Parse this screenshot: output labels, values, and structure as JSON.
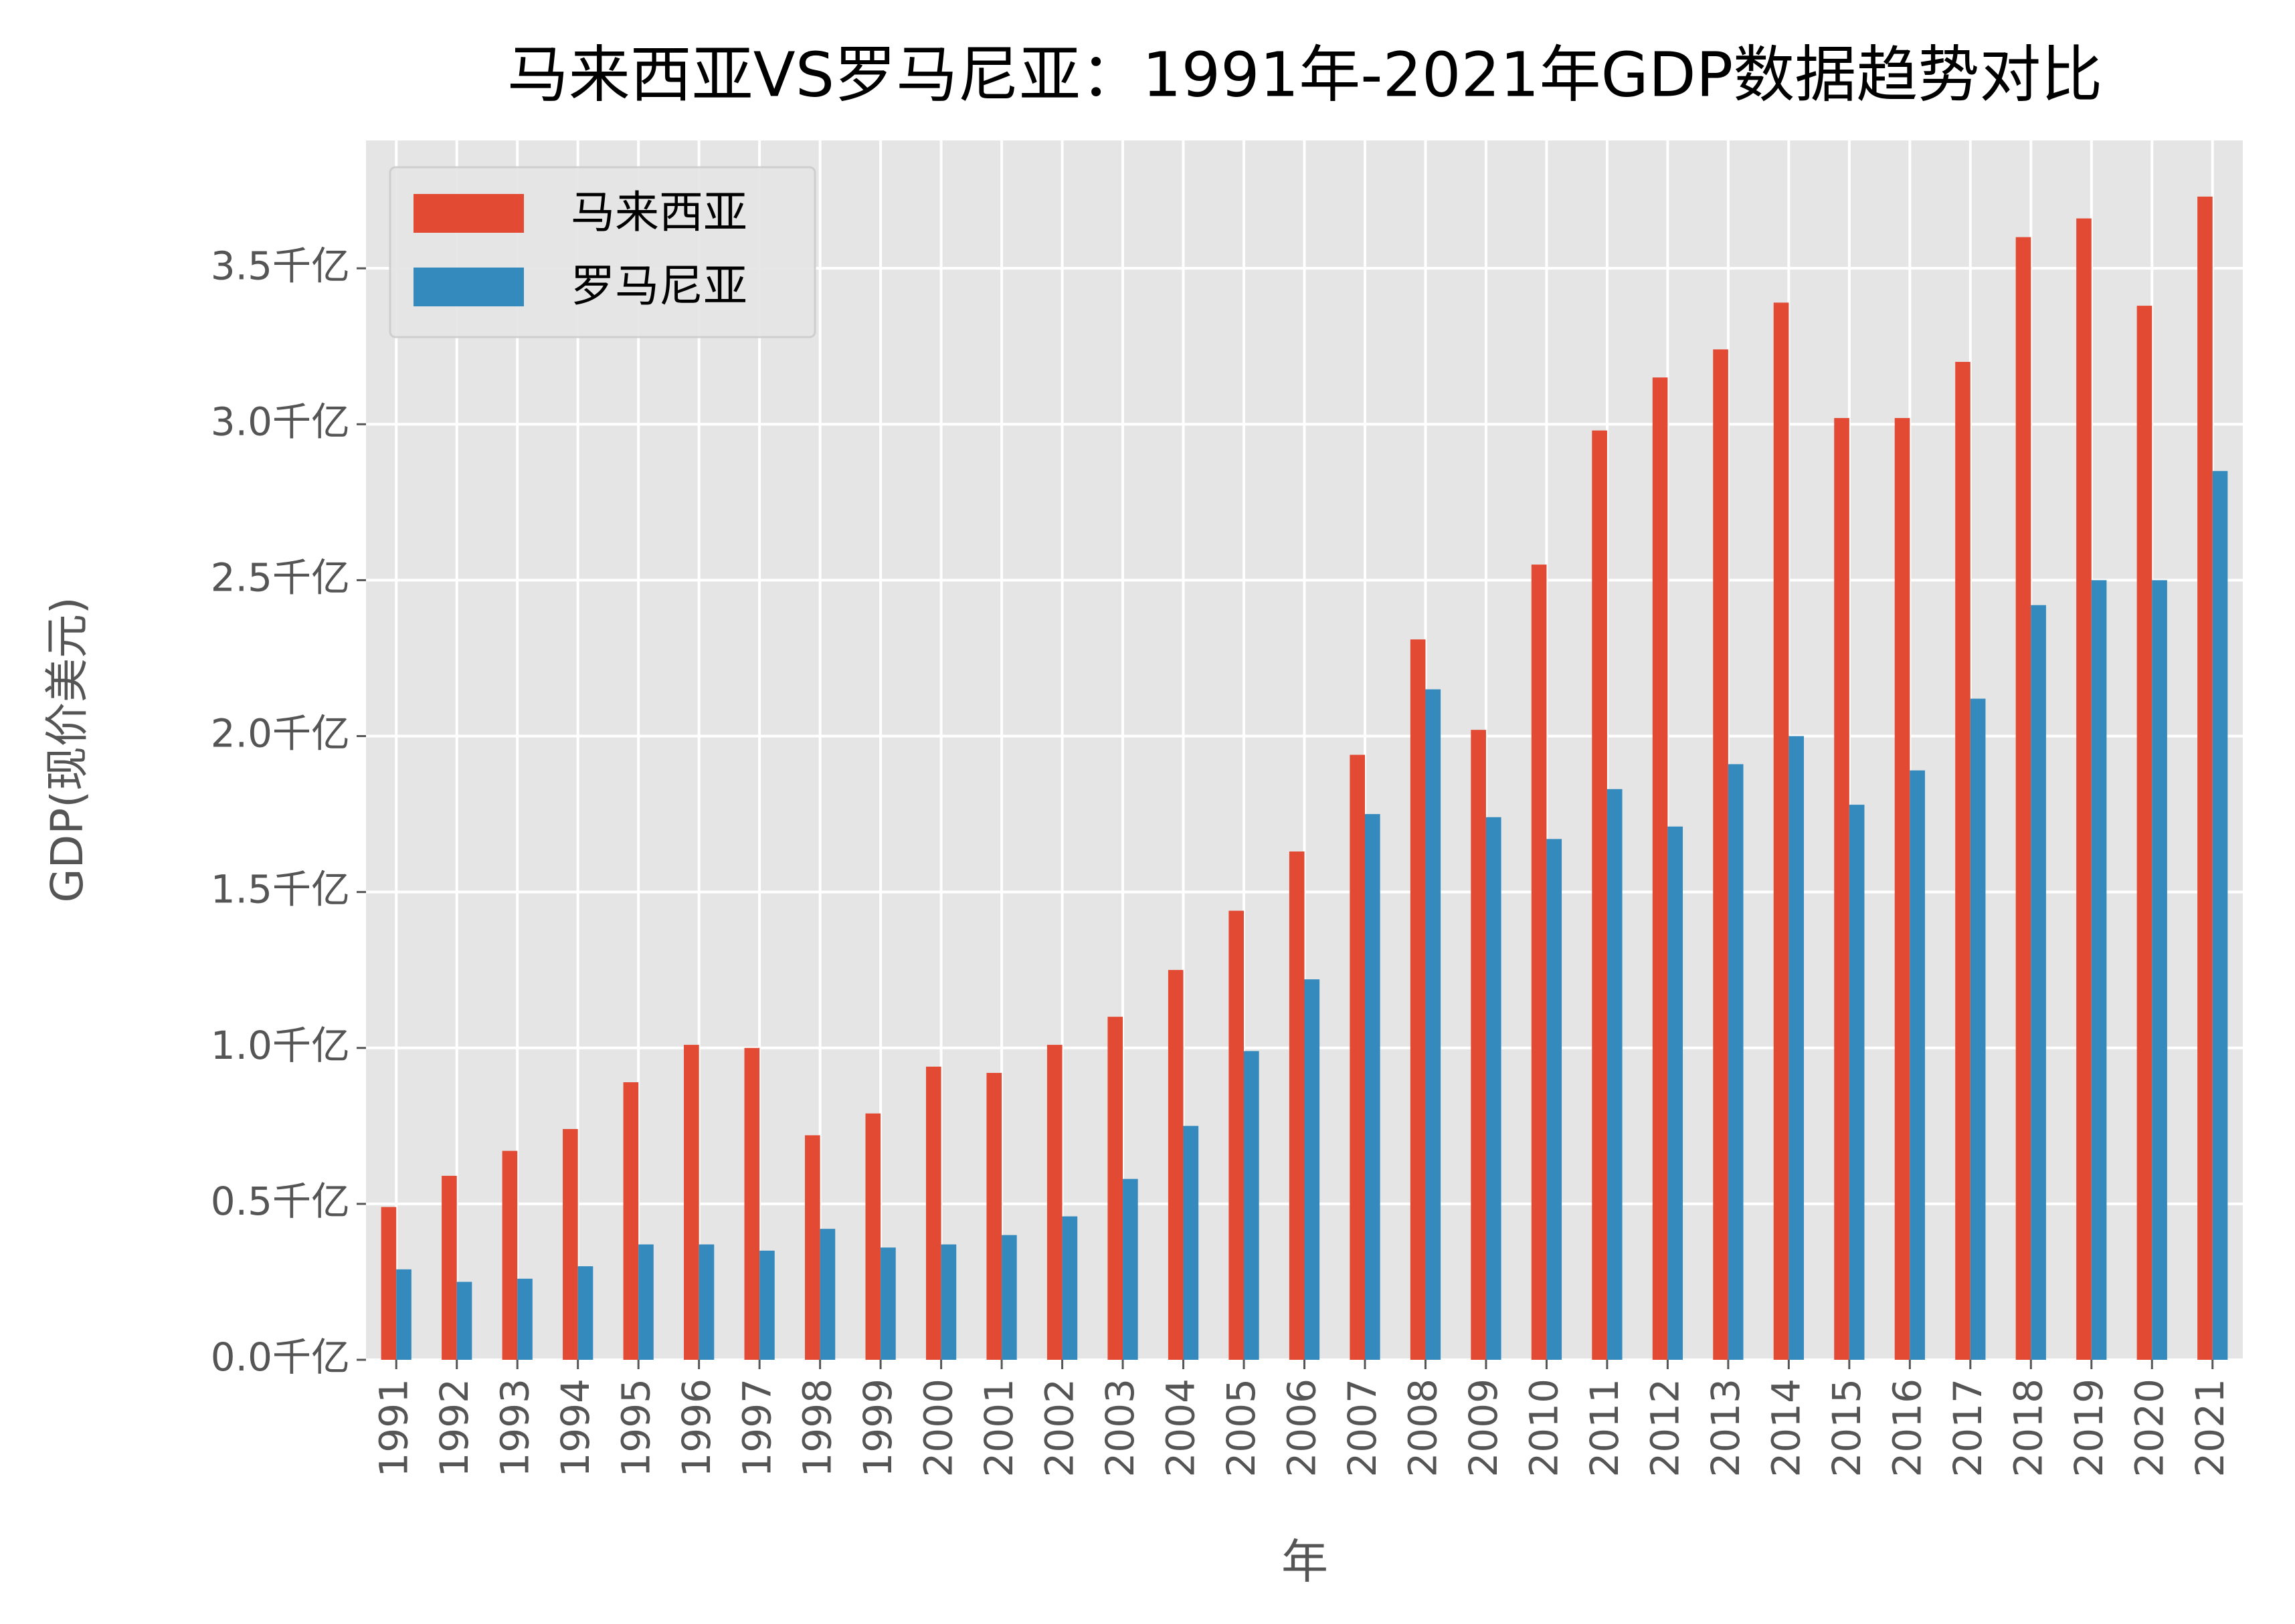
{
  "chart_data": {
    "type": "bar",
    "title": "马来西亚VS罗马尼亚：1991年-2021年GDP数据趋势对比",
    "x_label": "年",
    "y_label": "GDP(现价美元)",
    "categories": [
      "1991",
      "1992",
      "1993",
      "1994",
      "1995",
      "1996",
      "1997",
      "1998",
      "1999",
      "2000",
      "2001",
      "2002",
      "2003",
      "2004",
      "2005",
      "2006",
      "2007",
      "2008",
      "2009",
      "2010",
      "2011",
      "2012",
      "2013",
      "2014",
      "2015",
      "2016",
      "2017",
      "2018",
      "2019",
      "2020",
      "2021"
    ],
    "series": [
      {
        "name": "马来西亚",
        "color": "#E24A33",
        "values": [
          0.49,
          0.59,
          0.67,
          0.74,
          0.89,
          1.01,
          1.0,
          0.72,
          0.79,
          0.94,
          0.92,
          1.01,
          1.1,
          1.25,
          1.44,
          1.63,
          1.94,
          2.31,
          2.02,
          2.55,
          2.98,
          3.15,
          3.24,
          3.39,
          3.02,
          3.02,
          3.2,
          3.6,
          3.66,
          3.38,
          3.73
        ]
      },
      {
        "name": "罗马尼亚",
        "color": "#348ABD",
        "values": [
          0.29,
          0.25,
          0.26,
          0.3,
          0.37,
          0.37,
          0.35,
          0.42,
          0.36,
          0.37,
          0.4,
          0.46,
          0.58,
          0.75,
          0.99,
          1.22,
          1.75,
          2.15,
          1.74,
          1.67,
          1.83,
          1.71,
          1.91,
          2.0,
          1.78,
          1.89,
          2.12,
          2.42,
          2.5,
          2.5,
          2.85
        ]
      }
    ],
    "ylim": [
      0,
      3.91
    ],
    "yticks": [
      {
        "value": 0,
        "label": "0.0千亿"
      },
      {
        "value": 0.5,
        "label": "0.5千亿"
      },
      {
        "value": 1,
        "label": "1.0千亿"
      },
      {
        "value": 1.5,
        "label": "1.5千亿"
      },
      {
        "value": 2,
        "label": "2.0千亿"
      },
      {
        "value": 2.5,
        "label": "2.5千亿"
      },
      {
        "value": 3,
        "label": "3.0千亿"
      },
      {
        "value": 3.5,
        "label": "3.5千亿"
      }
    ],
    "grid": true,
    "legend": "upper left"
  }
}
